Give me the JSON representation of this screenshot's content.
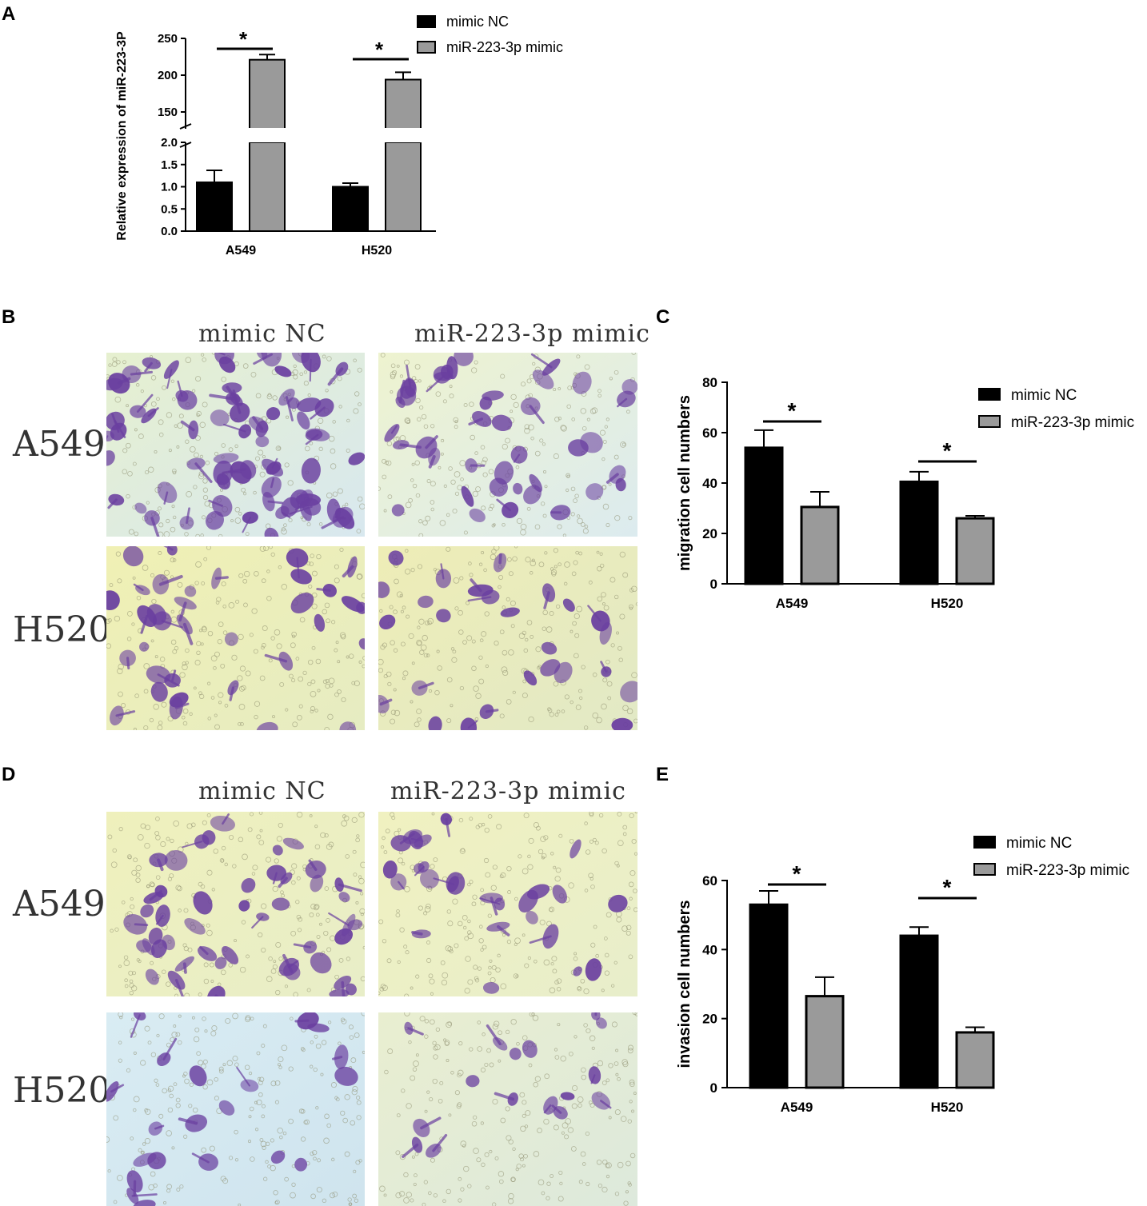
{
  "panel_letters": {
    "a": "A",
    "b": "B",
    "c": "C",
    "d": "D",
    "e": "E"
  },
  "panel_B": {
    "columns": [
      "mimic NC",
      "miR-223-3p mimic"
    ],
    "rows": [
      "A549",
      "H520"
    ]
  },
  "panel_D": {
    "columns": [
      "mimic NC",
      "miR-223-3p mimic"
    ],
    "rows": [
      "A549",
      "H520"
    ]
  },
  "colors": {
    "mimic_nc": "#000000",
    "mimic": "#9a9a9a",
    "stain": "#6a3fa0"
  },
  "chart_data": [
    {
      "id": "A",
      "type": "bar",
      "title": "",
      "xlabel": "",
      "ylabel": "Relative expression of miR-223-3P",
      "categories": [
        "A549",
        "H520"
      ],
      "series": [
        {
          "name": "mimic NC",
          "values": [
            1.1,
            1.0
          ],
          "errors": [
            0.27,
            0.08
          ]
        },
        {
          "name": "miR-223-3p mimic",
          "values": [
            221,
            194
          ],
          "errors": [
            7,
            10
          ]
        }
      ],
      "broken_axis": {
        "lower_ylim": [
          0,
          2.0
        ],
        "upper_ylim": [
          125,
          250
        ]
      },
      "yticks_lower": [
        "0.0",
        "0.5",
        "1.0",
        "1.5",
        "2.0"
      ],
      "yticks_upper": [
        "150",
        "200",
        "250"
      ],
      "significance": [
        "*",
        "*"
      ],
      "legend_position": "top-right"
    },
    {
      "id": "C",
      "type": "bar",
      "title": "",
      "xlabel": "",
      "ylabel": "migration cell numbers",
      "categories": [
        "A549",
        "H520"
      ],
      "series": [
        {
          "name": "mimic NC",
          "values": [
            54,
            40.5
          ],
          "errors": [
            7,
            4
          ]
        },
        {
          "name": "miR-223-3p mimic",
          "values": [
            30.5,
            26
          ],
          "errors": [
            6,
            1
          ]
        }
      ],
      "ylim": [
        0,
        80
      ],
      "yticks": [
        "0",
        "20",
        "40",
        "60",
        "80"
      ],
      "significance": [
        "*",
        "*"
      ],
      "legend_position": "top-right"
    },
    {
      "id": "E",
      "type": "bar",
      "title": "",
      "xlabel": "",
      "ylabel": "invasion cell numbers",
      "categories": [
        "A549",
        "H520"
      ],
      "series": [
        {
          "name": "mimic NC",
          "values": [
            53,
            44
          ],
          "errors": [
            4,
            2.5
          ]
        },
        {
          "name": "miR-223-3p mimic",
          "values": [
            26.5,
            16
          ],
          "errors": [
            5.5,
            1.5
          ]
        }
      ],
      "ylim": [
        0,
        60
      ],
      "yticks": [
        "0",
        "20",
        "40",
        "60"
      ],
      "significance": [
        "*",
        "*"
      ],
      "legend_position": "top-right"
    }
  ]
}
